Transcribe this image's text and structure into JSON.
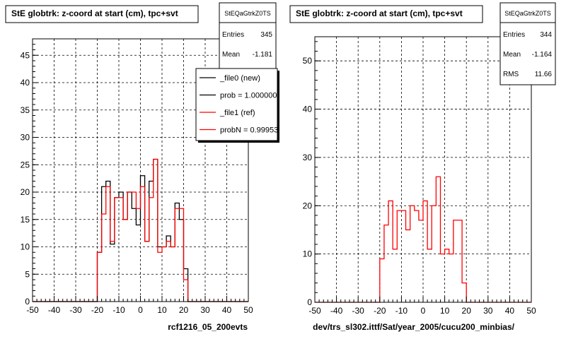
{
  "chart_data": [
    {
      "type": "histogram",
      "title": "StE globtrk: z-coord at start (cm), tpc+svt",
      "stats": {
        "name": "StEQaGtrkZ0TS",
        "rows": [
          {
            "label": "Entries",
            "value": "345"
          },
          {
            "label": "Mean",
            "value": "-1.181"
          }
        ]
      },
      "legend": {
        "placement": "top-right",
        "entries": [
          {
            "label": "_file0 (new)",
            "color": "#000000"
          },
          {
            "label": "prob = 1.000000",
            "color": "#000000"
          },
          {
            "label": "_file1 (ref)",
            "color": "#ff0000"
          },
          {
            "label": "probN = 0.99953",
            "color": "#ff0000"
          }
        ]
      },
      "xlabel": "rcf1216_05_200evts",
      "xlim": [
        -50,
        50
      ],
      "ylim": [
        0,
        48
      ],
      "xticks": [
        -50,
        -40,
        -30,
        -20,
        -10,
        0,
        10,
        20,
        30,
        40,
        50
      ],
      "yticks": [
        0,
        5,
        10,
        15,
        20,
        25,
        30,
        35,
        40,
        45
      ],
      "grid": true,
      "bin_width": 2,
      "series": [
        {
          "color": "#000000",
          "x": [
            -20,
            -18,
            -16,
            -14,
            -12,
            -10,
            -8,
            -6,
            -4,
            -2,
            0,
            2,
            4,
            6,
            8,
            10,
            12,
            14,
            16,
            18,
            20,
            22
          ],
          "values": [
            9,
            21,
            22,
            10.5,
            19,
            20,
            15,
            20,
            17,
            14,
            23,
            11,
            22,
            26,
            10,
            10,
            12,
            10,
            18,
            15,
            6,
            0
          ]
        },
        {
          "color": "#ff0000",
          "x": [
            -20,
            -18,
            -16,
            -14,
            -12,
            -10,
            -8,
            -6,
            -4,
            -2,
            0,
            2,
            4,
            6,
            8,
            10,
            12,
            14,
            16,
            18,
            20,
            22
          ],
          "values": [
            9,
            16,
            21,
            11,
            19,
            19,
            15,
            20,
            20,
            17,
            21,
            11,
            19,
            26,
            9,
            10,
            11,
            10,
            17,
            17,
            4,
            0
          ]
        }
      ]
    },
    {
      "type": "histogram",
      "title": "StE globtrk: z-coord at start (cm), tpc+svt",
      "stats": {
        "name": "StEQaGtrkZ0TS",
        "rows": [
          {
            "label": "Entries",
            "value": "344"
          },
          {
            "label": "Mean",
            "value": "-1.164"
          },
          {
            "label": "RMS",
            "value": "11.66"
          }
        ]
      },
      "xlabel": "dev/trs_sl302.ittf/Sat/year_2005/cucu200_minbias/",
      "xlim": [
        -50,
        50
      ],
      "ylim": [
        0,
        55
      ],
      "xticks": [
        -50,
        -40,
        -30,
        -20,
        -10,
        0,
        10,
        20,
        30,
        40,
        50
      ],
      "yticks": [
        0,
        10,
        20,
        30,
        40,
        50
      ],
      "grid": true,
      "bin_width": 2,
      "series": [
        {
          "color": "#ff0000",
          "x": [
            -20,
            -18,
            -16,
            -14,
            -12,
            -10,
            -8,
            -6,
            -4,
            -2,
            0,
            2,
            4,
            6,
            8,
            10,
            12,
            14,
            16,
            18,
            20,
            22
          ],
          "values": [
            9,
            16,
            21,
            11,
            19,
            19,
            15,
            20,
            19,
            17,
            21,
            11,
            20,
            26,
            10,
            11,
            10,
            17,
            17,
            4,
            0,
            0
          ]
        }
      ]
    }
  ]
}
